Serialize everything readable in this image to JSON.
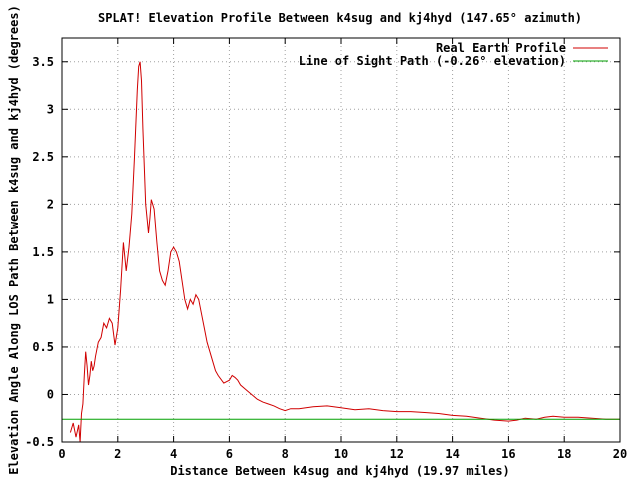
{
  "chart_data": {
    "type": "line",
    "title": "SPLAT! Elevation Profile Between k4sug and kj4hyd (147.65° azimuth)",
    "xlabel": "Distance Between k4sug and kj4hyd (19.97 miles)",
    "ylabel": "Elevation Angle Along LOS Path Between k4sug and kj4hyd (degrees)",
    "xlim": [
      0,
      20
    ],
    "ylim": [
      -0.5,
      3.75
    ],
    "x_ticks": [
      "0",
      "2",
      "4",
      "6",
      "8",
      "10",
      "12",
      "14",
      "16",
      "18",
      "20"
    ],
    "y_ticks": [
      "-0.5",
      "0",
      "0.5",
      "1",
      "1.5",
      "2",
      "2.5",
      "3",
      "3.5"
    ],
    "grid": true,
    "legend_position": "top-right",
    "series": [
      {
        "name": "Real Earth Profile",
        "color": "#d00000",
        "x": [
          0.3,
          0.4,
          0.5,
          0.6,
          0.65,
          0.7,
          0.75,
          0.8,
          0.85,
          0.9,
          0.95,
          1.0,
          1.05,
          1.1,
          1.15,
          1.2,
          1.3,
          1.4,
          1.5,
          1.6,
          1.7,
          1.8,
          1.9,
          2.0,
          2.1,
          2.2,
          2.3,
          2.4,
          2.5,
          2.6,
          2.7,
          2.75,
          2.8,
          2.85,
          2.9,
          2.95,
          3.0,
          3.1,
          3.15,
          3.2,
          3.3,
          3.4,
          3.5,
          3.6,
          3.7,
          3.8,
          3.9,
          4.0,
          4.1,
          4.2,
          4.3,
          4.4,
          4.5,
          4.6,
          4.7,
          4.8,
          4.9,
          5.0,
          5.1,
          5.2,
          5.3,
          5.4,
          5.5,
          5.6,
          5.8,
          6.0,
          6.1,
          6.2,
          6.3,
          6.4,
          6.6,
          6.8,
          7.0,
          7.2,
          7.4,
          7.6,
          7.8,
          8.0,
          8.2,
          8.5,
          9.0,
          9.5,
          10.0,
          10.5,
          11.0,
          11.5,
          12.0,
          12.5,
          13.0,
          13.5,
          14.0,
          14.5,
          15.0,
          15.5,
          16.0,
          16.3,
          16.6,
          17.0,
          17.3,
          17.6,
          18.0,
          18.5,
          19.0,
          19.5,
          20.0
        ],
        "y": [
          -0.4,
          -0.3,
          -0.45,
          -0.32,
          -0.5,
          -0.2,
          -0.1,
          0.2,
          0.45,
          0.3,
          0.1,
          0.2,
          0.35,
          0.25,
          0.3,
          0.4,
          0.55,
          0.6,
          0.75,
          0.7,
          0.8,
          0.75,
          0.52,
          0.7,
          1.1,
          1.6,
          1.3,
          1.55,
          1.9,
          2.5,
          3.2,
          3.45,
          3.5,
          3.3,
          2.8,
          2.4,
          2.0,
          1.7,
          1.85,
          2.05,
          1.95,
          1.6,
          1.3,
          1.2,
          1.15,
          1.3,
          1.5,
          1.55,
          1.5,
          1.4,
          1.2,
          1.0,
          0.9,
          1.0,
          0.95,
          1.05,
          1.0,
          0.85,
          0.7,
          0.55,
          0.45,
          0.35,
          0.25,
          0.2,
          0.12,
          0.15,
          0.2,
          0.18,
          0.15,
          0.1,
          0.05,
          0.0,
          -0.05,
          -0.08,
          -0.1,
          -0.12,
          -0.15,
          -0.17,
          -0.15,
          -0.15,
          -0.13,
          -0.12,
          -0.14,
          -0.16,
          -0.15,
          -0.17,
          -0.18,
          -0.18,
          -0.19,
          -0.2,
          -0.22,
          -0.23,
          -0.25,
          -0.27,
          -0.28,
          -0.27,
          -0.25,
          -0.26,
          -0.24,
          -0.23,
          -0.24,
          -0.24,
          -0.25,
          -0.26,
          -0.26
        ]
      },
      {
        "name": "Line of Sight Path (-0.26° elevation)",
        "color": "#00a000",
        "x": [
          0,
          20
        ],
        "y": [
          -0.26,
          -0.26
        ]
      }
    ]
  }
}
